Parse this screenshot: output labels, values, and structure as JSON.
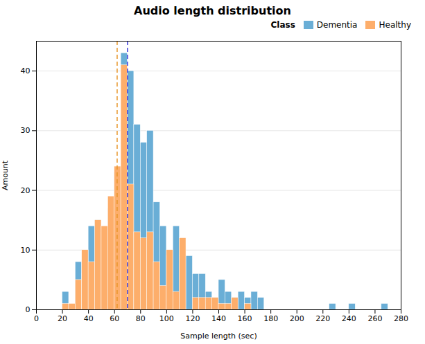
{
  "chart_data": {
    "type": "histogram",
    "title": "Audio length distribution",
    "xlabel": "Sample length (sec)",
    "ylabel": "Amount",
    "legend_title": "Class",
    "legend": "upper right",
    "grid": "y",
    "xlim": [
      0,
      280
    ],
    "ylim": [
      0,
      45
    ],
    "xticks": [
      0,
      20,
      40,
      60,
      80,
      100,
      120,
      140,
      160,
      180,
      200,
      220,
      240,
      260,
      280
    ],
    "yticks": [
      0,
      10,
      20,
      30,
      40
    ],
    "series": [
      {
        "name": "Dementia",
        "color": "#6aaed6",
        "bins": [
          15,
          20,
          25,
          30,
          35,
          40,
          45,
          50,
          55,
          60,
          65,
          70,
          75,
          80,
          85,
          90,
          95,
          100,
          105,
          110,
          115,
          120,
          125,
          130,
          135,
          140,
          145,
          150,
          155,
          160,
          165,
          170,
          175,
          180,
          185,
          190,
          195,
          200,
          205,
          210,
          215,
          220,
          225,
          230,
          235,
          240,
          245,
          250,
          255,
          260,
          265,
          270,
          275,
          280
        ],
        "values": [
          0,
          3,
          0,
          8,
          6,
          14,
          15,
          13,
          17,
          23,
          43,
          40,
          31,
          28,
          30,
          18,
          14,
          9,
          14,
          9,
          9,
          6,
          6,
          3,
          2,
          5,
          3,
          2,
          3,
          2,
          3,
          2,
          0,
          0,
          0,
          0,
          0,
          0,
          0,
          0,
          0,
          0,
          1,
          0,
          0,
          1,
          0,
          0,
          0,
          0,
          1,
          0,
          0
        ]
      },
      {
        "name": "Healthy",
        "color": "#fdae6b",
        "bins": [
          15,
          20,
          25,
          30,
          35,
          40,
          45,
          50,
          55,
          60,
          65,
          70,
          75,
          80,
          85,
          90,
          95,
          100,
          105,
          110,
          115,
          120,
          125,
          130,
          135,
          140,
          145,
          150,
          155,
          160,
          165,
          170
        ],
        "values": [
          0,
          1,
          1,
          5,
          10,
          8,
          15,
          14,
          19,
          24,
          41,
          21,
          13,
          12,
          13,
          8,
          4,
          10,
          3,
          12,
          0,
          2,
          2,
          2,
          2,
          1,
          1,
          2,
          0,
          1,
          0
        ]
      }
    ],
    "vlines": [
      {
        "x": 62,
        "color": "#e8962a"
      },
      {
        "x": 70,
        "color": "#3a3adb"
      }
    ]
  }
}
